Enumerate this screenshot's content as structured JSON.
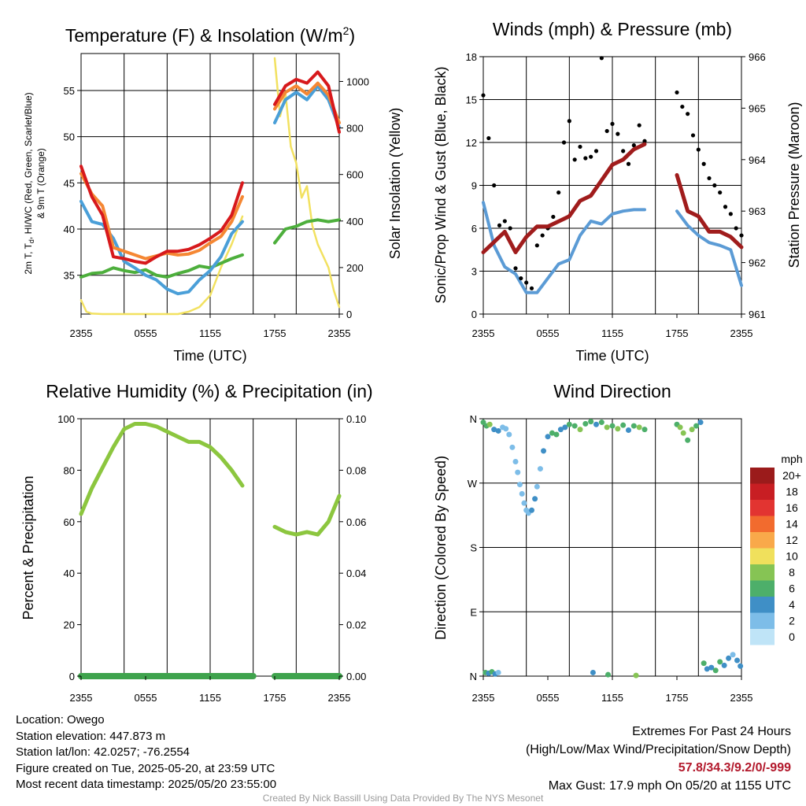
{
  "colors": {
    "temp": "#d7191c",
    "dewpoint": "#4a9fd8",
    "heat_index": "#4daf3c",
    "temp9m": "#f58733",
    "solar": "#f2e160",
    "gust": "#000000",
    "wind": "#5b9bd5",
    "pressure": "#a01c1c",
    "rh": "#8cc63f",
    "precip": "#3fa34d"
  },
  "chart_data": [
    {
      "id": "temp",
      "type": "line",
      "title": "Temperature (F) & Insolation (W/m²)",
      "xlabel": "Time (UTC)",
      "ylabel": "2m T, Td, HI/WC (Red, Green, Scarlet/Blue) & 9m T (Orange)",
      "y2label": "Solar Insolation (Yellow)",
      "xticks": [
        "2355",
        "0555",
        "1155",
        "1755",
        "2355"
      ],
      "yticks": [
        35,
        40,
        45,
        50,
        55
      ],
      "y2ticks": [
        0,
        200,
        400,
        600,
        800,
        1000
      ],
      "ylim": [
        30.8,
        59.0
      ],
      "y2lim": [
        0,
        1120
      ],
      "series": [
        {
          "key": "temp",
          "axis": "y",
          "x": [
            0,
            1,
            2,
            3,
            4,
            5,
            6,
            7,
            8,
            9,
            10,
            11,
            12,
            13,
            14,
            15,
            16,
            18,
            19,
            20,
            21,
            22,
            23,
            24
          ],
          "values": [
            46.8,
            43.5,
            41.5,
            37.0,
            36.8,
            36.5,
            36.3,
            37.0,
            37.6,
            37.6,
            37.8,
            38.3,
            39.0,
            39.8,
            41.5,
            45.0,
            null,
            53.5,
            55.5,
            56.2,
            55.8,
            57.0,
            55.5,
            50.5
          ]
        },
        {
          "key": "temp9m",
          "axis": "y",
          "x": [
            0,
            1,
            2,
            3,
            4,
            5,
            6,
            7,
            8,
            9,
            10,
            11,
            12,
            13,
            14,
            15,
            16,
            18,
            19,
            20,
            21,
            22,
            23,
            24
          ],
          "values": [
            46.0,
            43.8,
            42.5,
            38.0,
            37.6,
            37.2,
            36.8,
            37.1,
            37.4,
            37.2,
            37.3,
            37.7,
            38.5,
            39.2,
            40.8,
            43.5,
            null,
            53.0,
            54.8,
            55.5,
            54.6,
            55.8,
            54.5,
            51.5
          ]
        },
        {
          "key": "dewpoint",
          "axis": "y",
          "x": [
            0,
            1,
            2,
            3,
            4,
            5,
            6,
            7,
            8,
            9,
            10,
            11,
            12,
            13,
            14,
            15,
            16,
            18,
            19,
            20,
            21,
            22,
            23,
            24
          ],
          "values": [
            43.0,
            40.8,
            40.5,
            39.0,
            36.5,
            35.8,
            35.0,
            34.5,
            33.5,
            33.0,
            33.2,
            34.5,
            35.5,
            37.0,
            39.5,
            40.8,
            null,
            51.5,
            54.0,
            54.8,
            54.0,
            55.5,
            54.0,
            51.0
          ]
        },
        {
          "key": "heat_index",
          "axis": "y",
          "x": [
            0,
            1,
            2,
            3,
            4,
            5,
            6,
            7,
            8,
            9,
            10,
            11,
            12,
            13,
            14,
            15,
            16,
            18,
            19,
            20,
            21,
            22,
            23,
            24
          ],
          "values": [
            34.8,
            35.2,
            35.3,
            35.8,
            35.5,
            35.3,
            35.6,
            35.0,
            34.8,
            35.2,
            35.5,
            36.0,
            35.8,
            36.3,
            36.8,
            37.2,
            null,
            38.5,
            40.0,
            40.3,
            40.8,
            41.0,
            40.8,
            41.0
          ]
        },
        {
          "key": "solar",
          "axis": "y2",
          "x": [
            0,
            0.5,
            1,
            2,
            3,
            4,
            5,
            6,
            7,
            8,
            9,
            10,
            11,
            12,
            13,
            14,
            15,
            16,
            18,
            18.5,
            19,
            19.5,
            20,
            20.5,
            21,
            21.5,
            22,
            22.5,
            23,
            23.5,
            24
          ],
          "values": [
            60,
            10,
            2,
            0,
            0,
            0,
            0,
            0,
            0,
            0,
            0,
            10,
            30,
            80,
            200,
            300,
            420,
            null,
            1100,
            850,
            950,
            720,
            650,
            500,
            550,
            380,
            300,
            250,
            200,
            100,
            30
          ]
        }
      ]
    },
    {
      "id": "wind",
      "type": "line",
      "title": "Winds (mph) & Pressure (mb)",
      "xlabel": "Time (UTC)",
      "ylabel": "Sonic/Prop Wind & Gust (Blue, Black)",
      "y2label": "Station Pressure (Maroon)",
      "xticks": [
        "2355",
        "0555",
        "1155",
        "1755",
        "2355"
      ],
      "yticks": [
        0,
        3,
        6,
        9,
        12,
        15,
        18
      ],
      "y2ticks": [
        961,
        962,
        963,
        964,
        965,
        966
      ],
      "ylim": [
        0,
        18
      ],
      "y2lim": [
        961,
        966
      ],
      "series": [
        {
          "key": "wind",
          "axis": "y",
          "x": [
            0,
            1,
            2,
            3,
            4,
            5,
            6,
            7,
            8,
            9,
            10,
            11,
            12,
            13,
            14,
            15,
            16,
            18,
            19,
            20,
            21,
            22,
            23,
            24
          ],
          "values": [
            7.8,
            4.8,
            3.3,
            2.8,
            1.5,
            1.5,
            2.5,
            3.5,
            3.8,
            5.5,
            6.5,
            6.3,
            7.0,
            7.2,
            7.3,
            7.3,
            null,
            7.2,
            6.2,
            5.5,
            5.0,
            4.8,
            4.5,
            2.0
          ]
        },
        {
          "key": "pressure",
          "axis": "y2",
          "x": [
            0,
            1,
            2,
            3,
            4,
            5,
            6,
            7,
            8,
            9,
            10,
            11,
            12,
            13,
            14,
            15,
            16,
            18,
            19,
            20,
            21,
            22,
            23,
            24
          ],
          "values": [
            962.2,
            962.4,
            962.6,
            962.2,
            962.5,
            962.7,
            962.7,
            962.8,
            962.9,
            963.2,
            963.3,
            963.6,
            963.9,
            964.0,
            964.2,
            964.3,
            null,
            963.7,
            963.0,
            962.9,
            962.6,
            962.6,
            962.5,
            962.3
          ]
        },
        {
          "key": "gust",
          "axis": "y",
          "marker": "dot",
          "x": [
            0,
            0.5,
            1,
            1.5,
            2,
            2.5,
            3,
            3.5,
            4,
            4.5,
            5,
            5.5,
            6,
            6.5,
            7,
            7.5,
            8,
            8.5,
            9,
            9.5,
            10,
            10.5,
            11,
            11.5,
            12,
            12.5,
            13,
            13.5,
            14,
            14.5,
            15,
            18,
            18.5,
            19,
            19.5,
            20,
            20.5,
            21,
            21.5,
            22,
            22.5,
            23,
            23.5,
            24
          ],
          "values": [
            15.3,
            12.3,
            9.0,
            6.2,
            6.5,
            6.0,
            3.2,
            2.5,
            2.2,
            1.8,
            4.8,
            5.5,
            6.0,
            6.8,
            8.5,
            12.0,
            13.5,
            10.8,
            11.7,
            10.9,
            11.0,
            11.4,
            17.9,
            12.8,
            13.3,
            12.6,
            11.4,
            10.5,
            11.8,
            13.2,
            12.1,
            15.5,
            14.5,
            14.0,
            12.5,
            11.5,
            10.5,
            9.5,
            9.0,
            8.5,
            7.5,
            7.0,
            6.0,
            5.5
          ]
        }
      ]
    },
    {
      "id": "rh",
      "type": "line",
      "title": "Relative Humidity (%) & Precipitation (in)",
      "xlabel": "",
      "ylabel": "Percent & Precipitation",
      "xticks": [
        "2355",
        "0555",
        "1155",
        "1755",
        "2355"
      ],
      "yticks": [
        0,
        20,
        40,
        60,
        80,
        100
      ],
      "y2ticks": [
        "0.00",
        "0.02",
        "0.04",
        "0.06",
        "0.08",
        "0.10"
      ],
      "ylim": [
        0,
        100
      ],
      "series": [
        {
          "key": "rh",
          "axis": "y",
          "x": [
            0,
            1,
            2,
            3,
            4,
            5,
            6,
            7,
            8,
            9,
            10,
            11,
            12,
            13,
            14,
            15,
            16,
            18,
            19,
            20,
            21,
            22,
            23,
            24
          ],
          "values": [
            63,
            73,
            81,
            89,
            96,
            98,
            98,
            97,
            95,
            93,
            91,
            91,
            89,
            85,
            80,
            74,
            null,
            58,
            56,
            55,
            56,
            55,
            60,
            70
          ]
        },
        {
          "key": "precip",
          "axis": "y",
          "x": [
            0,
            16,
            18,
            24
          ],
          "values": [
            0,
            0,
            0,
            0
          ],
          "gap_after": 16
        }
      ]
    },
    {
      "id": "dir",
      "type": "scatter",
      "title": "Wind Direction",
      "xlabel": "",
      "ylabel": "Direction (Colored By Speed)",
      "xticks": [
        "2355",
        "0555",
        "1155",
        "1755",
        "2355"
      ],
      "yticks": [
        "N",
        "E",
        "S",
        "W",
        "N"
      ],
      "ylim": [
        0,
        360
      ],
      "legend": {
        "title": "mph",
        "placement": "right",
        "labels": [
          "20+",
          "18",
          "16",
          "14",
          "12",
          "10",
          "8",
          "6",
          "4",
          "2",
          "0"
        ],
        "colors": [
          "#9b1b1b",
          "#c81e23",
          "#e23431",
          "#f26b2e",
          "#f9a94a",
          "#f0e05c",
          "#86c454",
          "#4daf6a",
          "#3f8fc6",
          "#7dbde8",
          "#bfe4f7"
        ]
      },
      "x": [
        0,
        0.3,
        0.6,
        1.0,
        1.4,
        1.8,
        2.1,
        2.4,
        2.7,
        3.0,
        3.2,
        3.4,
        3.6,
        3.8,
        4.0,
        4.2,
        4.5,
        4.8,
        5.0,
        5.3,
        5.6,
        6.0,
        6.4,
        6.8,
        7.2,
        7.6,
        8.0,
        8.5,
        9.0,
        9.5,
        10,
        10.5,
        11,
        11.5,
        12,
        12.5,
        13,
        13.5,
        14,
        14.5,
        15,
        18,
        18.3,
        18.6,
        19.0,
        19.4,
        19.8,
        20.2,
        0.2,
        0.5,
        0.8,
        1.1,
        1.4,
        20.5,
        20.8,
        21.2,
        21.6,
        22,
        22.4,
        22.8,
        23.2,
        23.6,
        23.9,
        10.2,
        11.6,
        14.2
      ],
      "values": [
        355,
        350,
        352,
        345,
        343,
        348,
        346,
        338,
        320,
        300,
        285,
        268,
        255,
        242,
        232,
        228,
        232,
        248,
        265,
        290,
        315,
        335,
        340,
        338,
        345,
        348,
        352,
        350,
        345,
        353,
        356,
        352,
        355,
        348,
        350,
        346,
        351,
        344,
        350,
        348,
        345,
        352,
        348,
        340,
        330,
        345,
        350,
        355,
        5,
        4,
        6,
        3,
        5,
        18,
        10,
        12,
        8,
        20,
        15,
        25,
        30,
        22,
        14,
        5,
        2,
        1
      ],
      "speeds": [
        6,
        6,
        7,
        4,
        3,
        2,
        1,
        2,
        1,
        2,
        1,
        1,
        1,
        1,
        2,
        1,
        3,
        3,
        2,
        2,
        4,
        4,
        5,
        6,
        4,
        3,
        6,
        5,
        7,
        6,
        5,
        4,
        6,
        7,
        5,
        7,
        6,
        4,
        6,
        7,
        6,
        6,
        7,
        8,
        6,
        7,
        5,
        4,
        6,
        4,
        5,
        3,
        2,
        5,
        4,
        3,
        6,
        5,
        3,
        4,
        2,
        3,
        4,
        4,
        5,
        7
      ]
    }
  ],
  "footer": {
    "location": "Location: Owego",
    "elevation": "Station elevation: 447.873 m",
    "latlon": "Station lat/lon: 42.0257; -76.2554",
    "created": "Figure created on Tue, 2025-05-20, at 23:59 UTC",
    "recent": "Most recent data timestamp: 2025/05/20 23:55:00",
    "ext_title": "Extremes For Past 24 Hours",
    "ext_sub": "(High/Low/Max Wind/Precipitation/Snow Depth)",
    "ext_values": "57.8/34.3/9.2/0/-999",
    "max_gust": "Max Gust: 17.9 mph On 05/20 at 1155 UTC",
    "credit": "Created By Nick Bassill Using Data Provided By The NYS Mesonet"
  }
}
